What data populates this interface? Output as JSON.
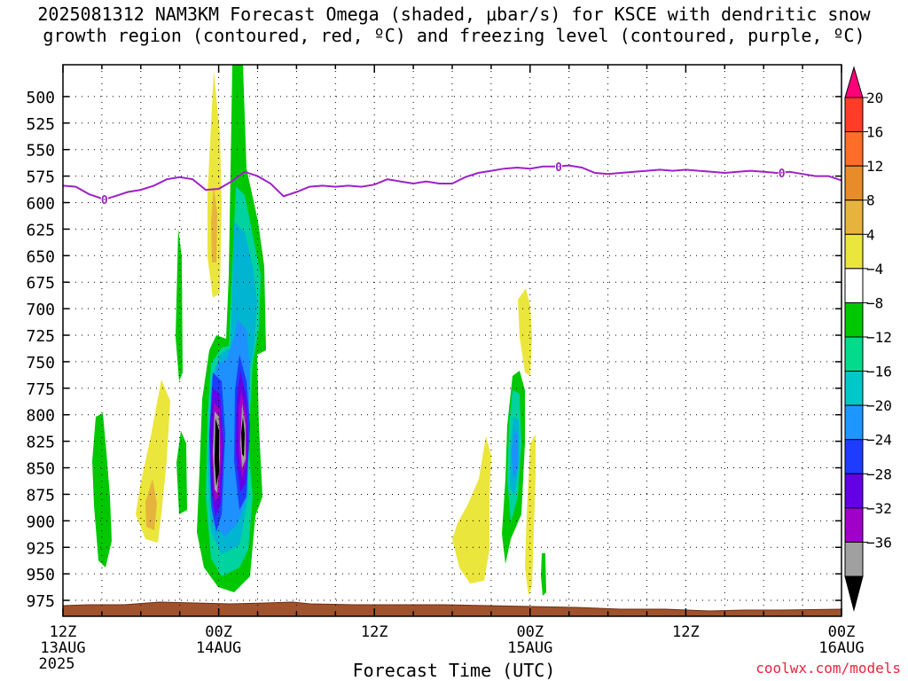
{
  "title": {
    "line1": "2025081312 NAM3KM Forecast Omega (shaded, μbar/s) for KSCE with dendritic snow",
    "line2": "growth region (contoured, red, ºC) and freezing level (contoured, purple, ºC)"
  },
  "credit": "coolwx.com/models",
  "chart_data": {
    "type": "heatmap",
    "xlabel": "Forecast Time (UTC)",
    "x_ticks": [
      {
        "hour": 0,
        "line1": "12Z",
        "line2": "13AUG",
        "line3": "2025"
      },
      {
        "hour": 12,
        "line1": "00Z",
        "line2": "14AUG",
        "line3": ""
      },
      {
        "hour": 24,
        "line1": "12Z",
        "line2": "",
        "line3": ""
      },
      {
        "hour": 36,
        "line1": "00Z",
        "line2": "15AUG",
        "line3": ""
      },
      {
        "hour": 48,
        "line1": "12Z",
        "line2": "",
        "line3": ""
      },
      {
        "hour": 60,
        "line1": "00Z",
        "line2": "16AUG",
        "line3": ""
      }
    ],
    "xlim": [
      0,
      60
    ],
    "y_ticks": [
      500,
      525,
      550,
      575,
      600,
      625,
      650,
      675,
      700,
      725,
      750,
      775,
      800,
      825,
      850,
      875,
      900,
      925,
      950,
      975
    ],
    "ylim_hpa": [
      470,
      990
    ],
    "grid": true,
    "colorbar": {
      "labels": [
        "20",
        "16",
        "12",
        "8",
        "4",
        "−4",
        "−8",
        "−12",
        "−16",
        "−20",
        "−24",
        "−28",
        "−32",
        "−36"
      ],
      "colors": [
        "#ff0078",
        "#ff3c28",
        "#ff6e28",
        "#e68c28",
        "#e6b43c",
        "#ebe63c",
        "#ffffff",
        "#00c800",
        "#00dc8c",
        "#00c8c8",
        "#1e96ff",
        "#1e3cff",
        "#6400e6",
        "#a000c8",
        "#a0a0a0",
        "#000000"
      ]
    },
    "colors": {
      "green": "#00c800",
      "lightgreen": "#00d2a0",
      "cyan": "#00b4d2",
      "blue": "#1e90ff",
      "darkblue": "#1e3cff",
      "purple": "#6400e6",
      "magenta": "#a000c8",
      "gray": "#a0a0a0",
      "black": "#000000",
      "yellow": "#ebe63c",
      "orange": "#e6b43c",
      "freezing": "#a020c8",
      "ground": "#a0522d"
    },
    "freezing_level": {
      "label": "0",
      "label_points": [
        [
          3.2,
          597
        ],
        [
          38.2,
          566
        ],
        [
          55.4,
          572
        ]
      ],
      "points": [
        [
          0,
          584
        ],
        [
          1,
          585
        ],
        [
          2,
          592
        ],
        [
          3.2,
          597
        ],
        [
          4,
          594
        ],
        [
          5,
          590
        ],
        [
          6,
          588
        ],
        [
          7,
          584
        ],
        [
          8,
          578
        ],
        [
          9,
          576
        ],
        [
          10,
          578
        ],
        [
          11,
          588
        ],
        [
          12,
          587
        ],
        [
          13,
          580
        ],
        [
          14,
          571
        ],
        [
          15,
          575
        ],
        [
          16,
          582
        ],
        [
          17,
          594
        ],
        [
          18,
          590
        ],
        [
          19,
          585
        ],
        [
          20,
          584
        ],
        [
          21,
          585
        ],
        [
          22,
          584
        ],
        [
          23,
          585
        ],
        [
          24,
          583
        ],
        [
          25,
          578
        ],
        [
          26,
          580
        ],
        [
          27,
          582
        ],
        [
          28,
          580
        ],
        [
          29,
          582
        ],
        [
          30,
          582
        ],
        [
          31,
          576
        ],
        [
          32,
          572
        ],
        [
          33,
          570
        ],
        [
          34,
          568
        ],
        [
          35,
          567
        ],
        [
          36,
          568
        ],
        [
          37,
          566
        ],
        [
          38,
          566
        ],
        [
          39,
          565
        ],
        [
          40,
          567
        ],
        [
          41,
          572
        ],
        [
          42,
          573
        ],
        [
          43,
          572
        ],
        [
          44,
          571
        ],
        [
          45,
          570
        ],
        [
          46,
          569
        ],
        [
          47,
          570
        ],
        [
          48,
          569
        ],
        [
          49,
          570
        ],
        [
          50,
          571
        ],
        [
          51,
          572
        ],
        [
          52,
          571
        ],
        [
          53,
          570
        ],
        [
          54,
          571
        ],
        [
          55,
          572
        ],
        [
          56,
          571
        ],
        [
          57,
          573
        ],
        [
          58,
          575
        ],
        [
          59,
          575
        ],
        [
          60,
          579
        ]
      ]
    }
  }
}
